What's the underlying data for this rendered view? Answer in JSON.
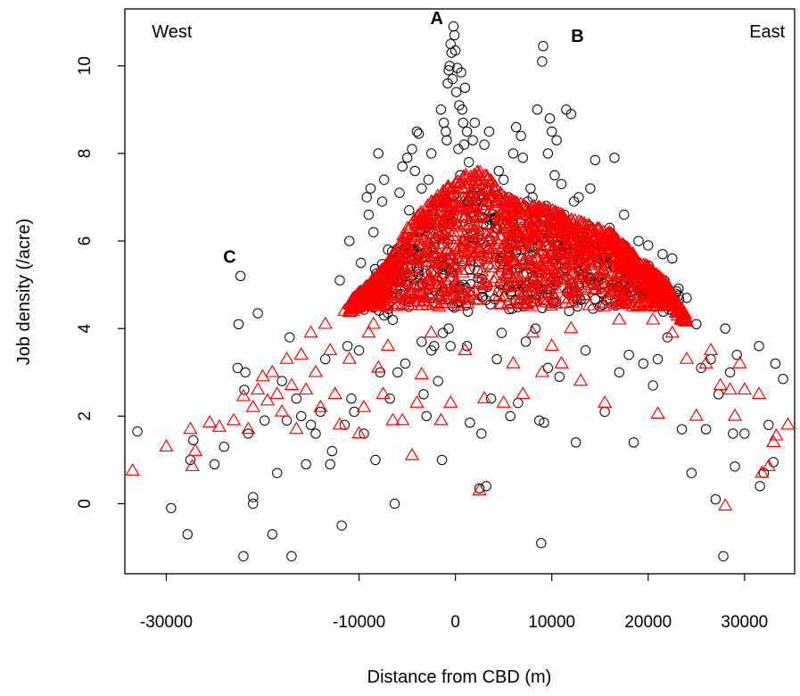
{
  "chart_data": {
    "type": "scatter",
    "title": "",
    "xlabel": "Distance from CBD (m)",
    "ylabel": "Job density (/acre)",
    "xlim": [
      -34300,
      35200
    ],
    "ylim": [
      -1.6,
      11.3
    ],
    "xticks": [
      -30000,
      -10000,
      0,
      10000,
      20000,
      30000
    ],
    "yticks": [
      0,
      2,
      4,
      6,
      8,
      10
    ],
    "grid": false,
    "legend": "none",
    "annotations": [
      {
        "text": "West",
        "x": -31500,
        "y": 10.65,
        "bold": false
      },
      {
        "text": "A",
        "x": -2600,
        "y": 10.95,
        "bold": true
      },
      {
        "text": "B",
        "x": 12000,
        "y": 10.55,
        "bold": true
      },
      {
        "text": "East",
        "x": 30500,
        "y": 10.65,
        "bold": false
      },
      {
        "text": "C",
        "x": -24100,
        "y": 5.5,
        "bold": true
      }
    ],
    "series": [
      {
        "marker": "circle",
        "color": "#000000",
        "points": [
          [
            -33000,
            1.65
          ],
          [
            -29500,
            -0.1
          ],
          [
            -27800,
            -0.7
          ],
          [
            -27500,
            1.0
          ],
          [
            -27200,
            1.45
          ],
          [
            -25000,
            0.9
          ],
          [
            -24000,
            1.3
          ],
          [
            -22300,
            5.2
          ],
          [
            -22500,
            4.1
          ],
          [
            -22600,
            3.1
          ],
          [
            -21800,
            3.0
          ],
          [
            -21900,
            2.6
          ],
          [
            -21000,
            0.15
          ],
          [
            -21000,
            0.0
          ],
          [
            -22000,
            -1.2
          ],
          [
            -20500,
            4.35
          ],
          [
            -21500,
            1.6
          ],
          [
            -19800,
            1.9
          ],
          [
            -19000,
            -0.7
          ],
          [
            -18500,
            0.7
          ],
          [
            -18000,
            2.8
          ],
          [
            -17500,
            1.9
          ],
          [
            -17200,
            3.8
          ],
          [
            -17000,
            -1.2
          ],
          [
            -16500,
            2.4
          ],
          [
            -16000,
            2.0
          ],
          [
            -15500,
            0.9
          ],
          [
            -15000,
            1.8
          ],
          [
            -14500,
            1.6
          ],
          [
            -14000,
            2.1
          ],
          [
            -13500,
            3.3
          ],
          [
            -13000,
            0.9
          ],
          [
            -12800,
            1.2
          ],
          [
            -12000,
            5.1
          ],
          [
            -11800,
            -0.5
          ],
          [
            -11500,
            1.8
          ],
          [
            -11000,
            6.0
          ],
          [
            -10800,
            2.4
          ],
          [
            -10500,
            2.1
          ],
          [
            -10000,
            3.5
          ],
          [
            -9500,
            1.6
          ],
          [
            -9800,
            5.5
          ],
          [
            -9200,
            7.0
          ],
          [
            -9000,
            6.6
          ],
          [
            -8800,
            7.2
          ],
          [
            -8500,
            6.2
          ],
          [
            -8300,
            1.0
          ],
          [
            -8000,
            8.0
          ],
          [
            -7800,
            3.0
          ],
          [
            -7600,
            6.9
          ],
          [
            -7400,
            7.4
          ],
          [
            -7000,
            5.8
          ],
          [
            -6800,
            2.4
          ],
          [
            -6500,
            4.2
          ],
          [
            -6300,
            0.0
          ],
          [
            -6000,
            3.0
          ],
          [
            -5800,
            7.1
          ],
          [
            -5500,
            7.7
          ],
          [
            -5200,
            3.2
          ],
          [
            -5000,
            7.9
          ],
          [
            -4800,
            6.7
          ],
          [
            -4500,
            8.1
          ],
          [
            -4200,
            7.6
          ],
          [
            -4000,
            8.5
          ],
          [
            -3800,
            8.45
          ],
          [
            -3500,
            7.2
          ],
          [
            -3300,
            2.5
          ],
          [
            -3000,
            2.0
          ],
          [
            -2800,
            7.4
          ],
          [
            -2500,
            8.0
          ],
          [
            -2200,
            3.6
          ],
          [
            -2000,
            6.8
          ],
          [
            -1800,
            2.8
          ],
          [
            -1500,
            9.0
          ],
          [
            -1400,
            1.0
          ],
          [
            -1200,
            8.7
          ],
          [
            -1000,
            8.5
          ],
          [
            -900,
            8.3
          ],
          [
            -800,
            9.6
          ],
          [
            -700,
            9.9
          ],
          [
            -600,
            10.0
          ],
          [
            -500,
            10.5
          ],
          [
            -400,
            10.3
          ],
          [
            -300,
            9.7
          ],
          [
            -200,
            10.9
          ],
          [
            -100,
            10.7
          ],
          [
            0,
            10.35
          ],
          [
            100,
            9.4
          ],
          [
            200,
            9.95
          ],
          [
            300,
            8.1
          ],
          [
            400,
            9.1
          ],
          [
            500,
            7.5
          ],
          [
            600,
            9.85
          ],
          [
            700,
            9.0
          ],
          [
            800,
            8.7
          ],
          [
            900,
            8.2
          ],
          [
            1000,
            9.5
          ],
          [
            1200,
            8.5
          ],
          [
            1400,
            7.8
          ],
          [
            1500,
            1.85
          ],
          [
            1800,
            8.3
          ],
          [
            2000,
            8.7
          ],
          [
            2200,
            7.1
          ],
          [
            2500,
            0.35
          ],
          [
            2700,
            1.6
          ],
          [
            3000,
            8.2
          ],
          [
            3200,
            0.4
          ],
          [
            3500,
            8.5
          ],
          [
            3700,
            2.4
          ],
          [
            4000,
            7.0
          ],
          [
            4200,
            6.3
          ],
          [
            4500,
            7.6
          ],
          [
            4800,
            3.9
          ],
          [
            5000,
            7.4
          ],
          [
            5200,
            6.6
          ],
          [
            5500,
            7.0
          ],
          [
            5700,
            2.0
          ],
          [
            6000,
            8.0
          ],
          [
            6300,
            8.6
          ],
          [
            6500,
            2.3
          ],
          [
            6800,
            8.4
          ],
          [
            7000,
            7.9
          ],
          [
            7300,
            3.7
          ],
          [
            7500,
            6.9
          ],
          [
            7800,
            7.2
          ],
          [
            8000,
            7.0
          ],
          [
            8300,
            4.0
          ],
          [
            8500,
            9.0
          ],
          [
            8700,
            1.9
          ],
          [
            8900,
            -0.9
          ],
          [
            9000,
            10.1
          ],
          [
            9100,
            10.45
          ],
          [
            9200,
            1.85
          ],
          [
            9400,
            6.8
          ],
          [
            9600,
            8.0
          ],
          [
            9800,
            8.8
          ],
          [
            10000,
            8.5
          ],
          [
            10300,
            7.5
          ],
          [
            10500,
            8.3
          ],
          [
            10800,
            2.9
          ],
          [
            11000,
            7.3
          ],
          [
            11300,
            6.6
          ],
          [
            11500,
            9.0
          ],
          [
            11800,
            4.4
          ],
          [
            12000,
            8.9
          ],
          [
            12300,
            6.9
          ],
          [
            12500,
            1.4
          ],
          [
            12800,
            7.0
          ],
          [
            13000,
            6.0
          ],
          [
            13500,
            3.5
          ],
          [
            14000,
            7.2
          ],
          [
            14500,
            7.85
          ],
          [
            15000,
            4.5
          ],
          [
            15500,
            2.1
          ],
          [
            16000,
            6.3
          ],
          [
            16500,
            7.9
          ],
          [
            17000,
            3.0
          ],
          [
            17500,
            6.6
          ],
          [
            18000,
            3.4
          ],
          [
            18500,
            1.4
          ],
          [
            19000,
            6.0
          ],
          [
            19500,
            3.2
          ],
          [
            20000,
            5.9
          ],
          [
            20500,
            2.7
          ],
          [
            21000,
            3.3
          ],
          [
            21500,
            5.7
          ],
          [
            22000,
            3.8
          ],
          [
            22500,
            5.6
          ],
          [
            23000,
            4.4
          ],
          [
            23500,
            1.7
          ],
          [
            24000,
            4.7
          ],
          [
            24500,
            0.7
          ],
          [
            25000,
            4.1
          ],
          [
            25500,
            3.1
          ],
          [
            26000,
            1.7
          ],
          [
            26500,
            3.3
          ],
          [
            27000,
            0.1
          ],
          [
            27300,
            2.5
          ],
          [
            27800,
            -1.2
          ],
          [
            28000,
            4.0
          ],
          [
            28500,
            3.0
          ],
          [
            28800,
            1.6
          ],
          [
            29000,
            0.85
          ],
          [
            29200,
            3.4
          ],
          [
            30000,
            1.6
          ],
          [
            31500,
            3.6
          ],
          [
            31600,
            0.4
          ],
          [
            32000,
            0.7
          ],
          [
            32500,
            1.8
          ],
          [
            33000,
            0.95
          ],
          [
            33200,
            3.2
          ],
          [
            34000,
            2.85
          ],
          [
            -3500,
            3.7
          ],
          [
            -2500,
            3.5
          ],
          [
            1200,
            3.6
          ],
          [
            4300,
            3.3
          ],
          [
            9600,
            3.1
          ],
          [
            -500,
            3.6
          ],
          [
            -700,
            4.0
          ],
          [
            -1300,
            3.9
          ],
          [
            -11200,
            3.6
          ],
          [
            -7400,
            4.3
          ]
        ]
      },
      {
        "marker": "triangle",
        "color": "#ff0000",
        "points": [
          [
            -33500,
            0.75
          ],
          [
            -30000,
            1.3
          ],
          [
            -27500,
            1.7
          ],
          [
            -27300,
            0.85
          ],
          [
            -27000,
            1.2
          ],
          [
            -25500,
            1.85
          ],
          [
            -24500,
            1.75
          ],
          [
            -23000,
            1.9
          ],
          [
            -22000,
            2.45
          ],
          [
            -21500,
            1.7
          ],
          [
            -21000,
            2.2
          ],
          [
            -20500,
            2.6
          ],
          [
            -20000,
            2.9
          ],
          [
            -19500,
            2.35
          ],
          [
            -19000,
            3.0
          ],
          [
            -18500,
            2.5
          ],
          [
            -18000,
            2.1
          ],
          [
            -17500,
            3.3
          ],
          [
            -17000,
            2.7
          ],
          [
            -16500,
            1.7
          ],
          [
            -16000,
            3.4
          ],
          [
            -15500,
            2.6
          ],
          [
            -15000,
            3.9
          ],
          [
            -14500,
            3.0
          ],
          [
            -14000,
            2.2
          ],
          [
            -13500,
            4.1
          ],
          [
            -13000,
            3.5
          ],
          [
            -12500,
            2.5
          ],
          [
            -12000,
            1.8
          ],
          [
            -11500,
            4.4
          ],
          [
            -11000,
            3.3
          ],
          [
            -10500,
            4.6
          ],
          [
            -10000,
            1.6
          ],
          [
            -9500,
            2.2
          ],
          [
            -9000,
            3.9
          ],
          [
            -8500,
            4.1
          ],
          [
            -8000,
            3.1
          ],
          [
            -7500,
            2.5
          ],
          [
            -7000,
            3.6
          ],
          [
            -6500,
            1.9
          ],
          [
            -5500,
            1.9
          ],
          [
            -4500,
            1.1
          ],
          [
            -4000,
            2.3
          ],
          [
            -3500,
            2.95
          ],
          [
            -2500,
            3.9
          ],
          [
            -1500,
            1.9
          ],
          [
            -500,
            2.3
          ],
          [
            1000,
            3.5
          ],
          [
            3000,
            2.4
          ],
          [
            2500,
            0.3
          ],
          [
            5000,
            2.3
          ],
          [
            6000,
            3.2
          ],
          [
            7000,
            2.5
          ],
          [
            8000,
            3.9
          ],
          [
            9000,
            3.0
          ],
          [
            10000,
            3.6
          ],
          [
            11000,
            3.2
          ],
          [
            12000,
            4.0
          ],
          [
            13000,
            2.8
          ],
          [
            15500,
            2.3
          ],
          [
            17000,
            4.2
          ],
          [
            19000,
            4.5
          ],
          [
            20500,
            4.2
          ],
          [
            21000,
            2.05
          ],
          [
            22500,
            3.9
          ],
          [
            24000,
            3.3
          ],
          [
            25000,
            2.0
          ],
          [
            26000,
            3.2
          ],
          [
            26500,
            3.5
          ],
          [
            27500,
            2.7
          ],
          [
            28000,
            -0.05
          ],
          [
            28500,
            2.6
          ],
          [
            29000,
            2.0
          ],
          [
            29500,
            3.2
          ],
          [
            30000,
            2.6
          ],
          [
            31500,
            2.5
          ],
          [
            31800,
            0.7
          ],
          [
            32500,
            0.85
          ],
          [
            33000,
            1.4
          ],
          [
            33300,
            1.55
          ],
          [
            34500,
            1.8
          ]
        ],
        "curve": [
          [
            -11000,
            4.6
          ],
          [
            -9000,
            5.0
          ],
          [
            -7000,
            5.5
          ],
          [
            -5000,
            6.3
          ],
          [
            -3000,
            6.8
          ],
          [
            -1000,
            7.2
          ],
          [
            0,
            7.35
          ],
          [
            1000,
            7.5
          ],
          [
            2000,
            7.6
          ],
          [
            3000,
            7.55
          ],
          [
            4000,
            7.3
          ],
          [
            5000,
            7.0
          ],
          [
            6000,
            6.9
          ],
          [
            7000,
            6.85
          ],
          [
            8000,
            6.8
          ],
          [
            10000,
            6.7
          ],
          [
            12000,
            6.5
          ],
          [
            14000,
            6.35
          ],
          [
            16000,
            6.2
          ],
          [
            18000,
            5.8
          ],
          [
            20000,
            5.4
          ],
          [
            22000,
            5.0
          ],
          [
            23000,
            4.6
          ],
          [
            24000,
            4.3
          ]
        ]
      }
    ]
  }
}
